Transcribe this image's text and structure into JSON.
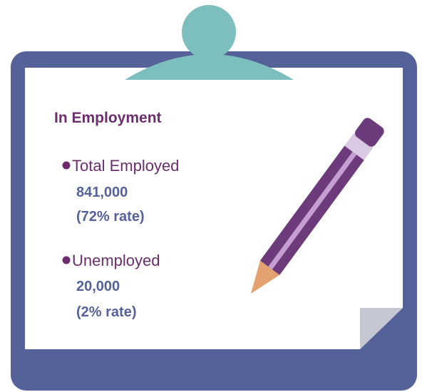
{
  "title": "In Employment",
  "items": [
    {
      "label": "Total Employed",
      "value": "841,000",
      "rate": "(72% rate)"
    },
    {
      "label": "Unemployed",
      "value": "20,000",
      "rate": "(2% rate)"
    }
  ]
}
